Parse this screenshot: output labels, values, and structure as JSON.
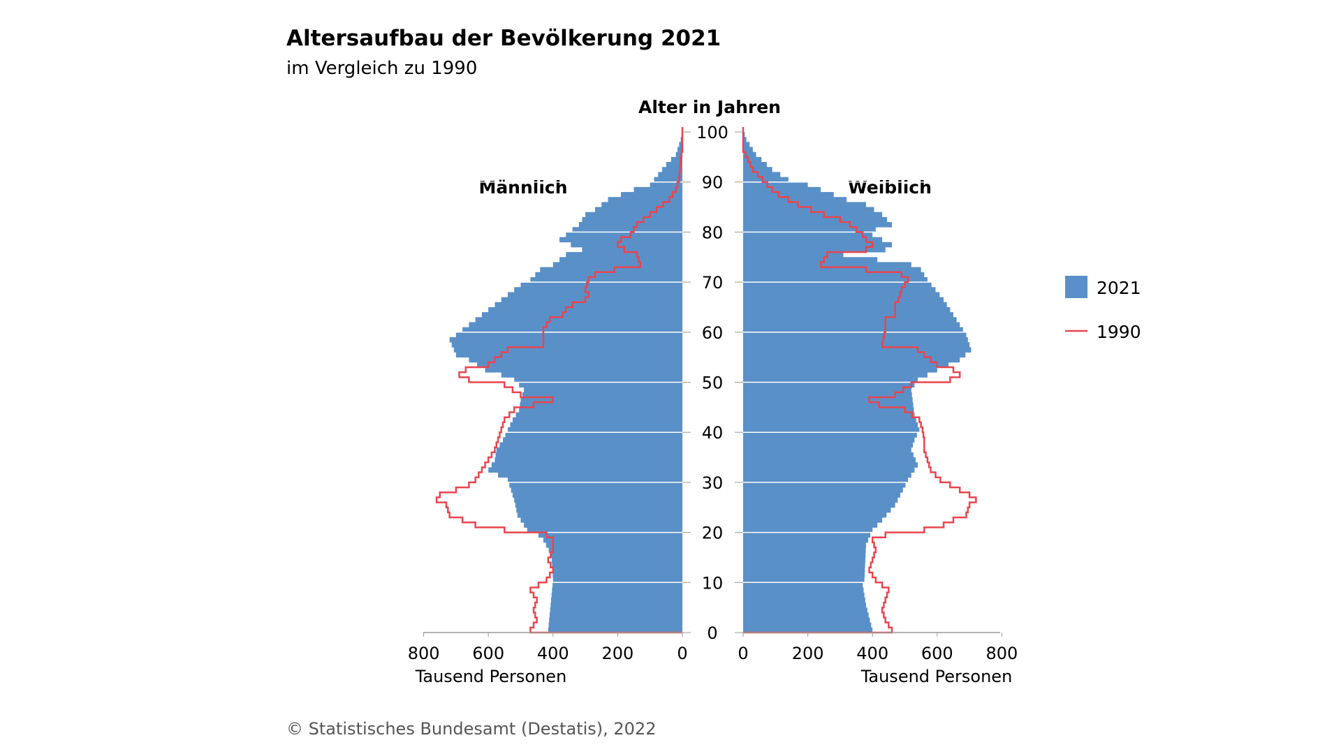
{
  "chart_data": {
    "type": "population-pyramid",
    "title": "Altersaufbau der Bevölkerung 2021",
    "subtitle": "im Vergleich zu 1990",
    "age_axis_label": "Alter in Jahren",
    "age_ticks": [
      0,
      10,
      20,
      30,
      40,
      50,
      60,
      70,
      80,
      90,
      100
    ],
    "left_label": "Männlich",
    "right_label": "Weiblich",
    "x_ticks": [
      0,
      200,
      400,
      600,
      800
    ],
    "x_range": [
      0,
      800
    ],
    "x_unit_label": "Tausend Personen",
    "legend": [
      {
        "name": "2021",
        "kind": "bar",
        "color": "#5a90c8"
      },
      {
        "name": "1990",
        "kind": "line",
        "color": "#e8454e"
      }
    ],
    "source": "© Statistisches Bundesamt (Destatis), 2022",
    "keyframes_note_skip": null,
    "male_2021": [
      [
        0,
        415
      ],
      [
        10,
        400
      ],
      [
        15,
        405
      ],
      [
        18,
        430
      ],
      [
        19,
        445
      ],
      [
        20,
        480
      ],
      [
        23,
        510
      ],
      [
        26,
        520
      ],
      [
        30,
        540
      ],
      [
        32,
        600
      ],
      [
        34,
        580
      ],
      [
        36,
        575
      ],
      [
        38,
        555
      ],
      [
        40,
        540
      ],
      [
        42,
        525
      ],
      [
        44,
        505
      ],
      [
        46,
        500
      ],
      [
        48,
        490
      ],
      [
        50,
        520
      ],
      [
        51,
        560
      ],
      [
        52,
        610
      ],
      [
        54,
        660
      ],
      [
        55,
        700
      ],
      [
        58,
        720
      ],
      [
        59,
        700
      ],
      [
        60,
        680
      ],
      [
        61,
        660
      ],
      [
        62,
        640
      ],
      [
        63,
        620
      ],
      [
        64,
        600
      ],
      [
        65,
        580
      ],
      [
        66,
        560
      ],
      [
        67,
        540
      ],
      [
        68,
        520
      ],
      [
        69,
        500
      ],
      [
        70,
        470
      ],
      [
        72,
        440
      ],
      [
        73,
        400
      ],
      [
        75,
        360
      ],
      [
        76,
        310
      ],
      [
        78,
        380
      ],
      [
        80,
        340
      ],
      [
        81,
        320
      ],
      [
        83,
        300
      ],
      [
        84,
        270
      ],
      [
        86,
        230
      ],
      [
        87,
        190
      ],
      [
        88,
        150
      ],
      [
        89,
        100
      ],
      [
        91,
        75
      ],
      [
        93,
        50
      ],
      [
        95,
        20
      ],
      [
        98,
        5
      ],
      [
        100,
        0
      ]
    ],
    "female_2021": [
      [
        0,
        400
      ],
      [
        5,
        380
      ],
      [
        9,
        370
      ],
      [
        10,
        375
      ],
      [
        17,
        380
      ],
      [
        20,
        400
      ],
      [
        22,
        430
      ],
      [
        25,
        470
      ],
      [
        30,
        510
      ],
      [
        33,
        540
      ],
      [
        36,
        520
      ],
      [
        38,
        530
      ],
      [
        40,
        545
      ],
      [
        43,
        530
      ],
      [
        48,
        520
      ],
      [
        50,
        540
      ],
      [
        52,
        600
      ],
      [
        54,
        670
      ],
      [
        56,
        705
      ],
      [
        59,
        690
      ],
      [
        61,
        670
      ],
      [
        62,
        660
      ],
      [
        64,
        640
      ],
      [
        66,
        620
      ],
      [
        68,
        595
      ],
      [
        70,
        570
      ],
      [
        72,
        550
      ],
      [
        73,
        520
      ],
      [
        75,
        310
      ],
      [
        76,
        440
      ],
      [
        77,
        460
      ],
      [
        79,
        400
      ],
      [
        80,
        410
      ],
      [
        81,
        460
      ],
      [
        83,
        430
      ],
      [
        85,
        380
      ],
      [
        86,
        320
      ],
      [
        87,
        280
      ],
      [
        88,
        240
      ],
      [
        89,
        200
      ],
      [
        90,
        140
      ],
      [
        92,
        90
      ],
      [
        95,
        40
      ],
      [
        98,
        10
      ],
      [
        100,
        0
      ]
    ],
    "male_1990": [
      [
        0,
        470
      ],
      [
        2,
        450
      ],
      [
        4,
        460
      ],
      [
        6,
        450
      ],
      [
        8,
        470
      ],
      [
        10,
        420
      ],
      [
        12,
        400
      ],
      [
        14,
        415
      ],
      [
        16,
        400
      ],
      [
        18,
        400
      ],
      [
        19,
        420
      ],
      [
        20,
        550
      ],
      [
        21,
        640
      ],
      [
        22,
        680
      ],
      [
        23,
        720
      ],
      [
        25,
        730
      ],
      [
        26,
        760
      ],
      [
        27,
        750
      ],
      [
        28,
        700
      ],
      [
        29,
        660
      ],
      [
        30,
        640
      ],
      [
        32,
        620
      ],
      [
        34,
        600
      ],
      [
        36,
        580
      ],
      [
        38,
        570
      ],
      [
        40,
        560
      ],
      [
        42,
        550
      ],
      [
        44,
        520
      ],
      [
        45,
        460
      ],
      [
        46,
        400
      ],
      [
        47,
        500
      ],
      [
        49,
        550
      ],
      [
        50,
        660
      ],
      [
        51,
        690
      ],
      [
        52,
        670
      ],
      [
        53,
        600
      ],
      [
        54,
        580
      ],
      [
        55,
        560
      ],
      [
        56,
        540
      ],
      [
        57,
        430
      ],
      [
        60,
        430
      ],
      [
        62,
        410
      ],
      [
        63,
        370
      ],
      [
        64,
        360
      ],
      [
        65,
        340
      ],
      [
        66,
        300
      ],
      [
        67,
        290
      ],
      [
        68,
        300
      ],
      [
        70,
        290
      ],
      [
        71,
        270
      ],
      [
        72,
        210
      ],
      [
        73,
        130
      ],
      [
        75,
        140
      ],
      [
        76,
        180
      ],
      [
        77,
        200
      ],
      [
        78,
        190
      ],
      [
        79,
        160
      ],
      [
        80,
        150
      ],
      [
        81,
        140
      ],
      [
        82,
        120
      ],
      [
        83,
        100
      ],
      [
        84,
        80
      ],
      [
        85,
        60
      ],
      [
        86,
        40
      ],
      [
        87,
        30
      ],
      [
        88,
        20
      ],
      [
        90,
        10
      ],
      [
        94,
        5
      ],
      [
        96,
        0
      ]
    ],
    "female_1990": [
      [
        0,
        460
      ],
      [
        2,
        440
      ],
      [
        4,
        430
      ],
      [
        6,
        440
      ],
      [
        8,
        450
      ],
      [
        10,
        410
      ],
      [
        12,
        390
      ],
      [
        14,
        400
      ],
      [
        16,
        410
      ],
      [
        18,
        400
      ],
      [
        19,
        440
      ],
      [
        20,
        560
      ],
      [
        21,
        620
      ],
      [
        22,
        650
      ],
      [
        23,
        690
      ],
      [
        25,
        700
      ],
      [
        26,
        720
      ],
      [
        27,
        700
      ],
      [
        28,
        670
      ],
      [
        29,
        640
      ],
      [
        30,
        610
      ],
      [
        32,
        580
      ],
      [
        34,
        570
      ],
      [
        36,
        560
      ],
      [
        38,
        560
      ],
      [
        40,
        555
      ],
      [
        42,
        545
      ],
      [
        44,
        500
      ],
      [
        45,
        420
      ],
      [
        46,
        390
      ],
      [
        47,
        470
      ],
      [
        49,
        520
      ],
      [
        50,
        640
      ],
      [
        51,
        670
      ],
      [
        52,
        650
      ],
      [
        53,
        600
      ],
      [
        54,
        580
      ],
      [
        55,
        560
      ],
      [
        56,
        540
      ],
      [
        57,
        430
      ],
      [
        60,
        440
      ],
      [
        62,
        440
      ],
      [
        63,
        470
      ],
      [
        65,
        470
      ],
      [
        66,
        480
      ],
      [
        68,
        490
      ],
      [
        70,
        510
      ],
      [
        71,
        490
      ],
      [
        72,
        380
      ],
      [
        73,
        240
      ],
      [
        75,
        260
      ],
      [
        76,
        380
      ],
      [
        77,
        400
      ],
      [
        78,
        380
      ],
      [
        79,
        370
      ],
      [
        80,
        350
      ],
      [
        81,
        330
      ],
      [
        82,
        300
      ],
      [
        83,
        250
      ],
      [
        84,
        210
      ],
      [
        85,
        170
      ],
      [
        86,
        140
      ],
      [
        87,
        110
      ],
      [
        88,
        90
      ],
      [
        90,
        60
      ],
      [
        92,
        30
      ],
      [
        94,
        15
      ],
      [
        96,
        0
      ]
    ]
  }
}
